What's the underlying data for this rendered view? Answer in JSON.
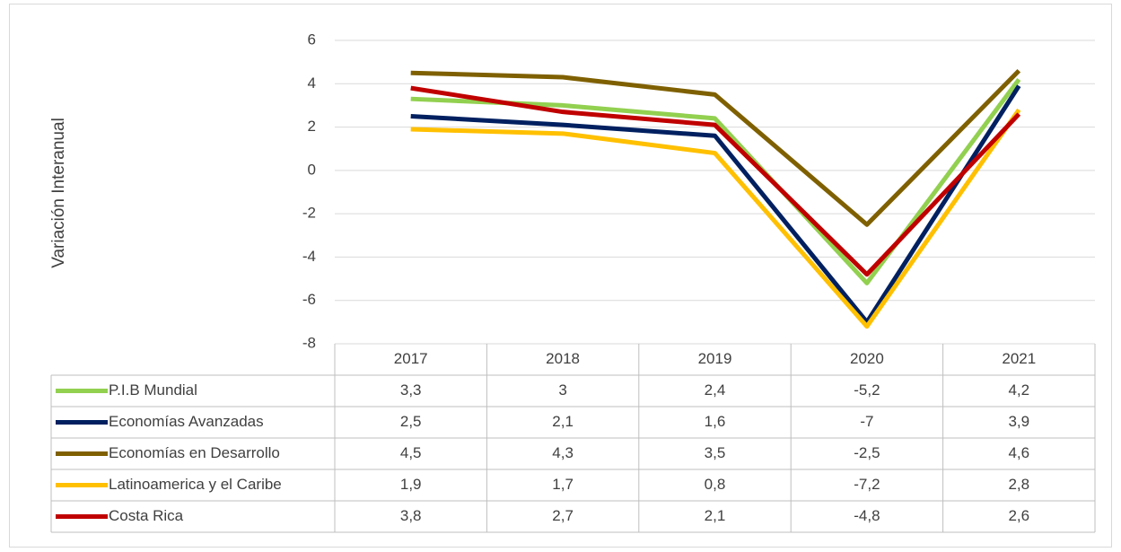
{
  "chart_data": {
    "type": "line",
    "y_label": "Variación Interanual",
    "categories": [
      "2017",
      "2018",
      "2019",
      "2020",
      "2021"
    ],
    "series": [
      {
        "name": "P.I.B Mundial",
        "color": "#92d050",
        "values": [
          3.3,
          3,
          2.4,
          -5.2,
          4.2
        ],
        "value_labels": [
          "3,3",
          "3",
          "2,4",
          "-5,2",
          "4,2"
        ]
      },
      {
        "name": "Economías Avanzadas",
        "color": "#002060",
        "values": [
          2.5,
          2.1,
          1.6,
          -7,
          3.9
        ],
        "value_labels": [
          "2,5",
          "2,1",
          "1,6",
          "-7",
          "3,9"
        ]
      },
      {
        "name": "Economías en Desarrollo",
        "color": "#7f6000",
        "values": [
          4.5,
          4.3,
          3.5,
          -2.5,
          4.6
        ],
        "value_labels": [
          "4,5",
          "4,3",
          "3,5",
          "-2,5",
          "4,6"
        ]
      },
      {
        "name": "Latinoamerica y el Caribe",
        "color": "#ffc000",
        "values": [
          1.9,
          1.7,
          0.8,
          -7.2,
          2.8
        ],
        "value_labels": [
          "1,9",
          "1,7",
          "0,8",
          "-7,2",
          "2,8"
        ]
      },
      {
        "name": "Costa Rica",
        "color": "#c00000",
        "values": [
          3.8,
          2.7,
          2.1,
          -4.8,
          2.6
        ],
        "value_labels": [
          "3,8",
          "2,7",
          "2,1",
          "-4,8",
          "2,6"
        ]
      }
    ],
    "ylim": [
      -8,
      6
    ],
    "yticks": [
      -8,
      -6,
      -4,
      -2,
      0,
      2,
      4,
      6
    ],
    "grid": true
  }
}
